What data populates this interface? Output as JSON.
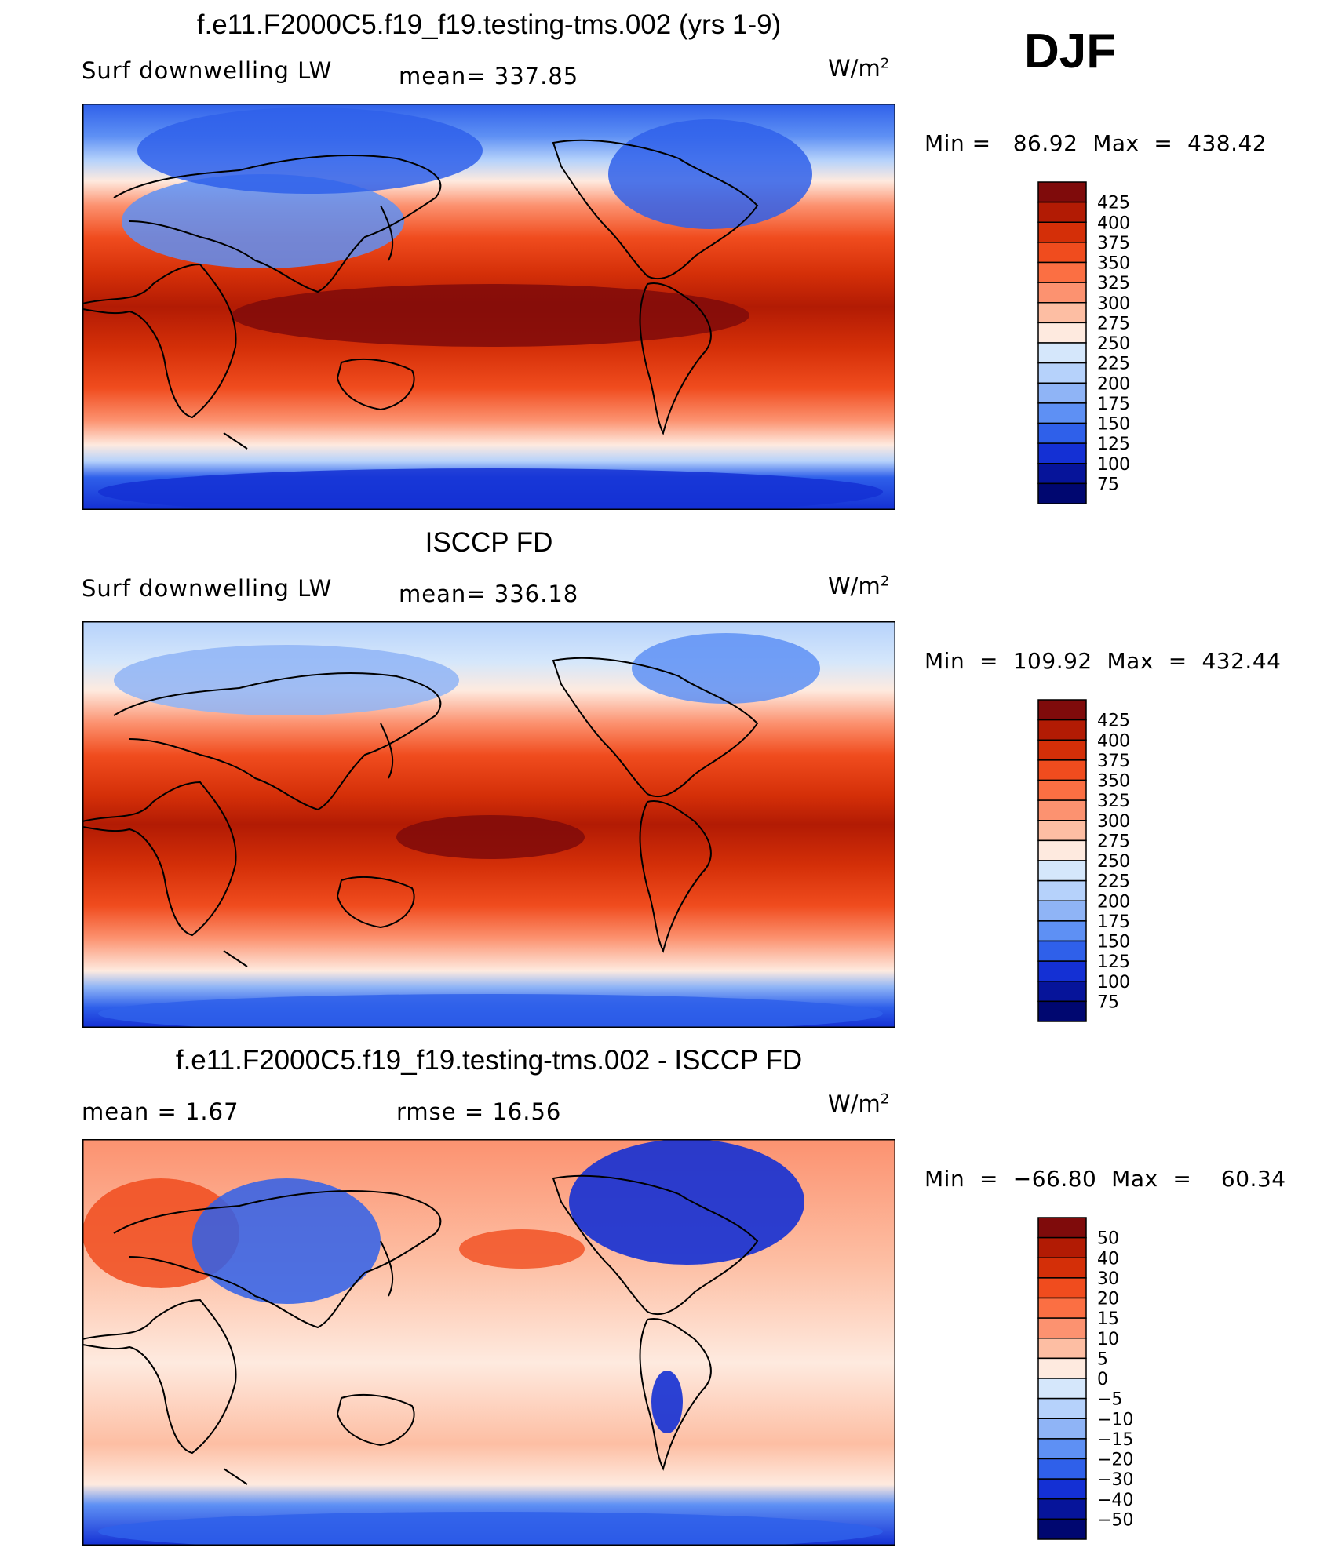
{
  "header": {
    "season": "DJF"
  },
  "panels": [
    {
      "id": "model",
      "title": "f.e11.F2000C5.f19_f19.testing-tms.002 (yrs 1-9)",
      "left_label": "Surf  downwelling LW",
      "stat_label": "mean=  337.85",
      "units": "W/m",
      "units_sup": "2",
      "minmax": "Min =   86.92  Max  =  438.42",
      "colorbar": {
        "labels": [
          "425",
          "400",
          "375",
          "350",
          "325",
          "300",
          "275",
          "250",
          "225",
          "200",
          "175",
          "150",
          "125",
          "100",
          "75"
        ],
        "colors": [
          "#7f0b0b",
          "#b21b04",
          "#d42f08",
          "#f04c1e",
          "#fb6f43",
          "#fc9270",
          "#fdbea3",
          "#feeadf",
          "#d5e7fb",
          "#b6d2fb",
          "#8fb4f6",
          "#5e90f4",
          "#2f60ea",
          "#1430d4",
          "#06149a",
          "#000770"
        ]
      }
    },
    {
      "id": "obs",
      "title": "ISCCP FD",
      "left_label": "Surf  downwelling LW",
      "stat_label": "mean=  336.18",
      "units": "W/m",
      "units_sup": "2",
      "minmax": "Min  =  109.92  Max  =  432.44",
      "colorbar": {
        "labels": [
          "425",
          "400",
          "375",
          "350",
          "325",
          "300",
          "275",
          "250",
          "225",
          "200",
          "175",
          "150",
          "125",
          "100",
          "75"
        ],
        "colors": [
          "#7f0b0b",
          "#b21b04",
          "#d42f08",
          "#f04c1e",
          "#fb6f43",
          "#fc9270",
          "#fdbea3",
          "#feeadf",
          "#d5e7fb",
          "#b6d2fb",
          "#8fb4f6",
          "#5e90f4",
          "#2f60ea",
          "#1430d4",
          "#06149a",
          "#000770"
        ]
      }
    },
    {
      "id": "diff",
      "title": "f.e11.F2000C5.f19_f19.testing-tms.002 - ISCCP FD",
      "left_label": "mean  =     1.67",
      "stat_label": "rmse  =    16.56",
      "units": "W/m",
      "units_sup": "2",
      "minmax": "Min  =  −66.80  Max  =    60.34",
      "colorbar": {
        "labels": [
          "50",
          "40",
          "30",
          "20",
          "15",
          "10",
          "5",
          "0",
          "−5",
          "−10",
          "−15",
          "−20",
          "−30",
          "−40",
          "−50"
        ],
        "colors": [
          "#7f0b0b",
          "#b21b04",
          "#d42f08",
          "#f04c1e",
          "#fb6f43",
          "#fc9270",
          "#fdbea3",
          "#feeadf",
          "#d5e7fb",
          "#b6d2fb",
          "#8fb4f6",
          "#5e90f4",
          "#2f60ea",
          "#1430d4",
          "#06149a",
          "#000770"
        ]
      }
    }
  ],
  "colors": {
    "land_outline": "#000000",
    "frame": "#000000"
  }
}
